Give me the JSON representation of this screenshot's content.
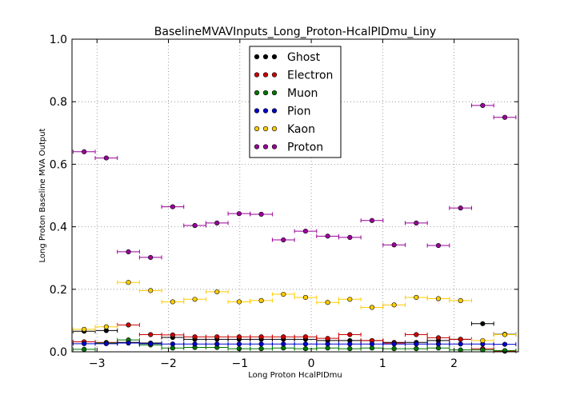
{
  "chart_data": {
    "type": "scatter",
    "title": "BaselineMVAVInputs_Long_Proton-HcalPIDmu_Liny",
    "xlabel": "Long Proton HcalPIDmu",
    "ylabel": "Long Proton Baseline MVA Output",
    "xlim": [
      -3.35,
      2.9
    ],
    "ylim": [
      0.0,
      1.0
    ],
    "x_ticks": [
      -3,
      -2,
      -1,
      0,
      1,
      2
    ],
    "x_tick_labels": [
      "−3",
      "−2",
      "−1",
      "0",
      "1",
      "2"
    ],
    "y_ticks": [
      0.0,
      0.2,
      0.4,
      0.6,
      0.8,
      1.0
    ],
    "y_tick_labels": [
      "0.0",
      "0.2",
      "0.4",
      "0.6",
      "0.8",
      "1.0"
    ],
    "grid": true,
    "legend_position": "top-center",
    "bin_half_width": 0.155,
    "x": [
      -3.18,
      -2.87,
      -2.56,
      -2.25,
      -1.94,
      -1.63,
      -1.32,
      -1.01,
      -0.7,
      -0.39,
      -0.08,
      0.23,
      0.54,
      0.85,
      1.16,
      1.47,
      1.78,
      2.09,
      2.4,
      2.71
    ],
    "series": [
      {
        "name": "Ghost",
        "color": "#000000",
        "values": [
          0.066,
          0.068,
          0.03,
          0.028,
          0.046,
          0.04,
          0.04,
          0.04,
          0.04,
          0.04,
          0.04,
          0.036,
          0.036,
          0.036,
          0.03,
          0.03,
          0.036,
          0.04,
          0.09,
          0.056
        ]
      },
      {
        "name": "Electron",
        "color": "#cc0000",
        "values": [
          0.032,
          0.03,
          0.086,
          0.055,
          0.054,
          0.048,
          0.048,
          0.048,
          0.048,
          0.048,
          0.048,
          0.043,
          0.055,
          0.036,
          0.028,
          0.055,
          0.045,
          0.04,
          0.01,
          0.002
        ]
      },
      {
        "name": "Muon",
        "color": "#007700",
        "values": [
          0.008,
          0.028,
          0.038,
          0.022,
          0.012,
          0.014,
          0.014,
          0.01,
          0.01,
          0.012,
          0.01,
          0.012,
          0.01,
          0.012,
          0.01,
          0.01,
          0.012,
          0.006,
          0.006,
          0.004
        ]
      },
      {
        "name": "Pion",
        "color": "#0000cc",
        "values": [
          0.026,
          0.026,
          0.028,
          0.026,
          0.025,
          0.025,
          0.025,
          0.025,
          0.025,
          0.025,
          0.025,
          0.025,
          0.025,
          0.025,
          0.025,
          0.025,
          0.025,
          0.025,
          0.025,
          0.024
        ]
      },
      {
        "name": "Kaon",
        "color": "#ffcc00",
        "values": [
          0.072,
          0.08,
          0.222,
          0.196,
          0.16,
          0.168,
          0.192,
          0.16,
          0.164,
          0.184,
          0.174,
          0.158,
          0.168,
          0.142,
          0.15,
          0.174,
          0.17,
          0.164,
          0.036,
          0.055
        ]
      },
      {
        "name": "Proton",
        "color": "#990099",
        "values": [
          0.64,
          0.62,
          0.32,
          0.302,
          0.464,
          0.404,
          0.412,
          0.442,
          0.44,
          0.358,
          0.386,
          0.37,
          0.366,
          0.42,
          0.342,
          0.412,
          0.34,
          0.46,
          0.788,
          0.75
        ]
      }
    ]
  }
}
